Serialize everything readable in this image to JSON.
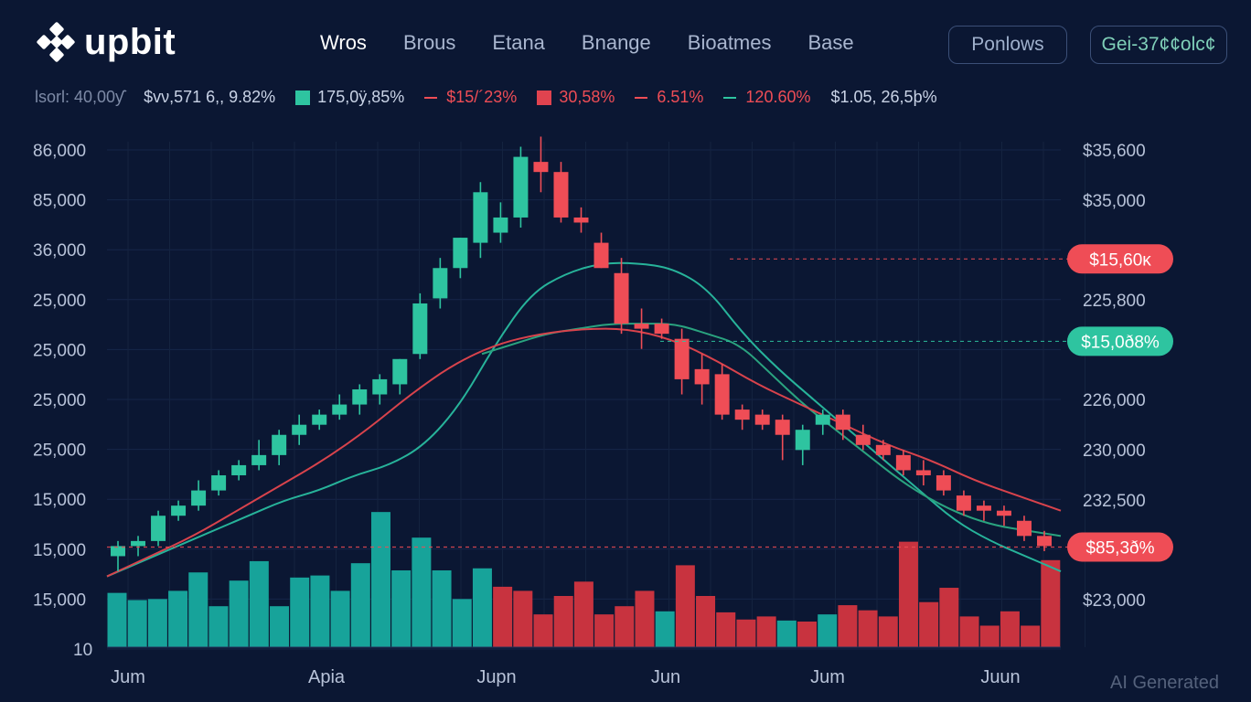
{
  "header": {
    "logo_text": "upbit",
    "nav": [
      "Wros",
      "Brous",
      "Etana",
      "Bnange",
      "Bioatmes",
      "Base"
    ],
    "button_1": "Ponlows",
    "button_2": "Gei-37¢¢olc¢"
  },
  "ticker": [
    {
      "text": "lsorl: 40,00ƴ",
      "color": "#7d8aa6",
      "marker": "none"
    },
    {
      "text": "$vν,571 6,, 9.82%",
      "color": "#c9d3e6",
      "marker": "none"
    },
    {
      "text": "175,0ÿ,85%",
      "color": "#c9d3e6",
      "marker": "square",
      "marker_color": "#2ec4a0"
    },
    {
      "text": "$15/´23%",
      "color": "#ef4d56",
      "marker": "dash",
      "marker_color": "#ef4d56"
    },
    {
      "text": "30,58%",
      "color": "#ef4d56",
      "marker": "square",
      "marker_color": "#e0434f"
    },
    {
      "text": "6.51%",
      "color": "#ef4d56",
      "marker": "dash",
      "marker_color": "#ef4d56"
    },
    {
      "text": "120.60%",
      "color": "#ef4d56",
      "marker": "dash",
      "marker_color": "#2ec4a0"
    },
    {
      "text": "$1.05, 26,5þ%",
      "color": "#c9d3e6",
      "marker": "none"
    }
  ],
  "watermark": "AI Generated",
  "chart_data": {
    "type": "candlestick",
    "left_axis_labels": [
      "86,000",
      "85,000",
      "36,000",
      "25,000",
      "25,000",
      "25,000",
      "25,000",
      "15,000",
      "15,000",
      "15,000",
      "10"
    ],
    "right_axis_labels": [
      "$35,600",
      "$35,000",
      "225,800",
      "226,000",
      "230,000",
      "232,500",
      "$23,000"
    ],
    "x_labels": [
      "Jum",
      "Apia",
      "Jupn",
      "Jun",
      "Jum",
      "Juun"
    ],
    "y_range": [
      0,
      100
    ],
    "price_tags": [
      {
        "label": "$15,60ĸ",
        "value": 76.8,
        "color": "#ef4d56"
      },
      {
        "label": "$15,0ð8%",
        "value": 60.5,
        "color": "#2ec4a0"
      },
      {
        "label": "$85,3ð%",
        "value": 19.8,
        "color": "#ef4d56"
      }
    ],
    "candles": [
      {
        "o": 18,
        "h": 21,
        "l": 15,
        "c": 20
      },
      {
        "o": 20,
        "h": 22,
        "l": 18,
        "c": 21
      },
      {
        "o": 21,
        "h": 27,
        "l": 20,
        "c": 26
      },
      {
        "o": 26,
        "h": 29,
        "l": 25,
        "c": 28
      },
      {
        "o": 28,
        "h": 33,
        "l": 27,
        "c": 31
      },
      {
        "o": 31,
        "h": 35,
        "l": 30,
        "c": 34
      },
      {
        "o": 34,
        "h": 37,
        "l": 33,
        "c": 36
      },
      {
        "o": 36,
        "h": 41,
        "l": 35,
        "c": 38
      },
      {
        "o": 38,
        "h": 43,
        "l": 36,
        "c": 42
      },
      {
        "o": 42,
        "h": 46,
        "l": 40,
        "c": 44
      },
      {
        "o": 44,
        "h": 47,
        "l": 43,
        "c": 46
      },
      {
        "o": 46,
        "h": 50,
        "l": 45,
        "c": 48
      },
      {
        "o": 48,
        "h": 52,
        "l": 46,
        "c": 51
      },
      {
        "o": 50,
        "h": 54,
        "l": 48,
        "c": 53
      },
      {
        "o": 52,
        "h": 57,
        "l": 50,
        "c": 57
      },
      {
        "o": 58,
        "h": 70,
        "l": 57,
        "c": 68
      },
      {
        "o": 69,
        "h": 77,
        "l": 67,
        "c": 75
      },
      {
        "o": 75,
        "h": 81,
        "l": 73,
        "c": 81
      },
      {
        "o": 80,
        "h": 92,
        "l": 77,
        "c": 90
      },
      {
        "o": 82,
        "h": 88,
        "l": 80,
        "c": 85
      },
      {
        "o": 85,
        "h": 99,
        "l": 83,
        "c": 97
      },
      {
        "o": 96,
        "h": 101,
        "l": 90,
        "c": 94
      },
      {
        "o": 94,
        "h": 96,
        "l": 84,
        "c": 85
      },
      {
        "o": 85,
        "h": 87,
        "l": 82,
        "c": 84
      },
      {
        "o": 80,
        "h": 82,
        "l": 75,
        "c": 75
      },
      {
        "o": 74,
        "h": 77,
        "l": 62,
        "c": 64
      },
      {
        "o": 64,
        "h": 67,
        "l": 59,
        "c": 63
      },
      {
        "o": 64,
        "h": 65,
        "l": 61,
        "c": 62
      },
      {
        "o": 61,
        "h": 63,
        "l": 50,
        "c": 53
      },
      {
        "o": 55,
        "h": 58,
        "l": 48,
        "c": 52
      },
      {
        "o": 54,
        "h": 56,
        "l": 45,
        "c": 46
      },
      {
        "o": 47,
        "h": 48,
        "l": 43,
        "c": 45
      },
      {
        "o": 46,
        "h": 47,
        "l": 43,
        "c": 44
      },
      {
        "o": 45,
        "h": 46,
        "l": 37,
        "c": 42
      },
      {
        "o": 39,
        "h": 44,
        "l": 36,
        "c": 43
      },
      {
        "o": 44,
        "h": 47,
        "l": 42,
        "c": 46
      },
      {
        "o": 46,
        "h": 47,
        "l": 41,
        "c": 43
      },
      {
        "o": 42,
        "h": 44,
        "l": 39,
        "c": 40
      },
      {
        "o": 40,
        "h": 41,
        "l": 37,
        "c": 38
      },
      {
        "o": 38,
        "h": 39,
        "l": 34,
        "c": 35
      },
      {
        "o": 35,
        "h": 37,
        "l": 32,
        "c": 34
      },
      {
        "o": 34,
        "h": 35,
        "l": 30,
        "c": 31
      },
      {
        "o": 30,
        "h": 31,
        "l": 26,
        "c": 27
      },
      {
        "o": 28,
        "h": 29,
        "l": 25,
        "c": 27
      },
      {
        "o": 27,
        "h": 28,
        "l": 24,
        "c": 26
      },
      {
        "o": 25,
        "h": 26,
        "l": 21,
        "c": 22
      },
      {
        "o": 22,
        "h": 23,
        "l": 19,
        "c": 20
      }
    ],
    "volume": [
      {
        "v": 53,
        "up": true
      },
      {
        "v": 46,
        "up": true
      },
      {
        "v": 47,
        "up": true
      },
      {
        "v": 55,
        "up": true
      },
      {
        "v": 73,
        "up": true
      },
      {
        "v": 40,
        "up": true
      },
      {
        "v": 65,
        "up": true
      },
      {
        "v": 84,
        "up": true
      },
      {
        "v": 40,
        "up": true
      },
      {
        "v": 68,
        "up": true
      },
      {
        "v": 70,
        "up": true
      },
      {
        "v": 55,
        "up": true
      },
      {
        "v": 82,
        "up": true
      },
      {
        "v": 132,
        "up": true
      },
      {
        "v": 75,
        "up": true
      },
      {
        "v": 107,
        "up": true
      },
      {
        "v": 75,
        "up": true
      },
      {
        "v": 47,
        "up": true
      },
      {
        "v": 77,
        "up": true
      },
      {
        "v": 59,
        "up": false
      },
      {
        "v": 55,
        "up": false
      },
      {
        "v": 32,
        "up": false
      },
      {
        "v": 50,
        "up": false
      },
      {
        "v": 64,
        "up": false
      },
      {
        "v": 32,
        "up": false
      },
      {
        "v": 40,
        "up": false
      },
      {
        "v": 55,
        "up": false
      },
      {
        "v": 35,
        "up": true
      },
      {
        "v": 80,
        "up": false
      },
      {
        "v": 50,
        "up": false
      },
      {
        "v": 34,
        "up": false
      },
      {
        "v": 27,
        "up": false
      },
      {
        "v": 30,
        "up": false
      },
      {
        "v": 26,
        "up": true
      },
      {
        "v": 25,
        "up": false
      },
      {
        "v": 32,
        "up": true
      },
      {
        "v": 41,
        "up": false
      },
      {
        "v": 36,
        "up": false
      },
      {
        "v": 30,
        "up": false
      },
      {
        "v": 103,
        "up": false
      },
      {
        "v": 44,
        "up": false
      },
      {
        "v": 58,
        "up": false
      },
      {
        "v": 30,
        "up": false
      },
      {
        "v": 21,
        "up": false
      },
      {
        "v": 35,
        "up": false
      },
      {
        "v": 21,
        "up": false
      },
      {
        "v": 85,
        "up": false
      }
    ],
    "moving_averages": [
      {
        "name": "ma-fast",
        "color": "#27b39a",
        "values": [
          14,
          17,
          20,
          23,
          26,
          29,
          31,
          34,
          36,
          40,
          48,
          60,
          70,
          74,
          76,
          76,
          75,
          71,
          62,
          55,
          49,
          43,
          37,
          31,
          25,
          21,
          18,
          15
        ]
      },
      {
        "name": "ma-mid",
        "color": "#2aa37f",
        "values": [
          58,
          60,
          62,
          63,
          64,
          64,
          64,
          62,
          60,
          54,
          48,
          43,
          38,
          33,
          29,
          26,
          24,
          23,
          22
        ]
      },
      {
        "name": "ma-slow",
        "color": "#d8434c",
        "values": [
          14,
          18,
          22,
          27,
          32,
          37,
          43,
          50,
          56,
          60,
          62,
          63,
          63,
          61,
          57,
          52,
          48,
          44,
          40,
          37,
          33,
          30,
          27
        ]
      }
    ]
  }
}
